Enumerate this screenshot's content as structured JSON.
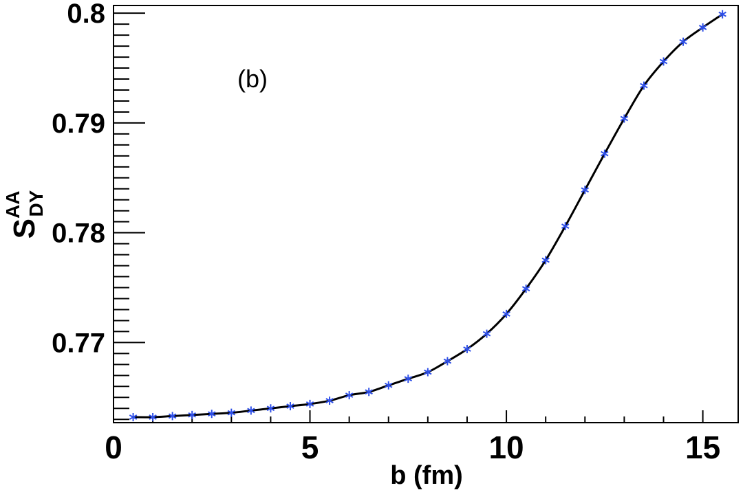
{
  "chart_data": {
    "type": "line",
    "title": "",
    "annotation": "(b)",
    "xlabel": "b (fm)",
    "ylabel": {
      "base": "S",
      "superscript": "AA",
      "subscript": "DY"
    },
    "xlim": [
      0,
      15.9
    ],
    "ylim": [
      0.7627,
      0.8007
    ],
    "x_ticks": [
      0,
      5,
      10,
      15
    ],
    "x_tick_labels": [
      "0",
      "5",
      "10",
      "15"
    ],
    "y_ticks": [
      0.77,
      0.78,
      0.79,
      0.8
    ],
    "y_tick_labels": [
      "0.77",
      "0.78",
      "0.79",
      "0.8"
    ],
    "grid": false,
    "series": [
      {
        "color": "#2e4fe8",
        "marker": "asterisk",
        "line_color": "#000000",
        "x": [
          0.5,
          1.0,
          1.5,
          2.0,
          2.5,
          3.0,
          3.5,
          4.0,
          4.5,
          5.0,
          5.5,
          6.0,
          6.5,
          7.0,
          7.5,
          8.0,
          8.5,
          9.0,
          9.5,
          10.0,
          10.5,
          11.0,
          11.5,
          12.0,
          12.5,
          13.0,
          13.5,
          14.0,
          14.5,
          15.0,
          15.5
        ],
        "y": [
          0.7632,
          0.7632,
          0.7633,
          0.7634,
          0.7635,
          0.7636,
          0.7638,
          0.764,
          0.7642,
          0.7644,
          0.7647,
          0.7652,
          0.7655,
          0.7661,
          0.7667,
          0.7673,
          0.7683,
          0.7694,
          0.7708,
          0.7726,
          0.7749,
          0.7775,
          0.7806,
          0.7839,
          0.7872,
          0.7904,
          0.7934,
          0.7956,
          0.7974,
          0.7987,
          0.7999
        ]
      }
    ]
  }
}
